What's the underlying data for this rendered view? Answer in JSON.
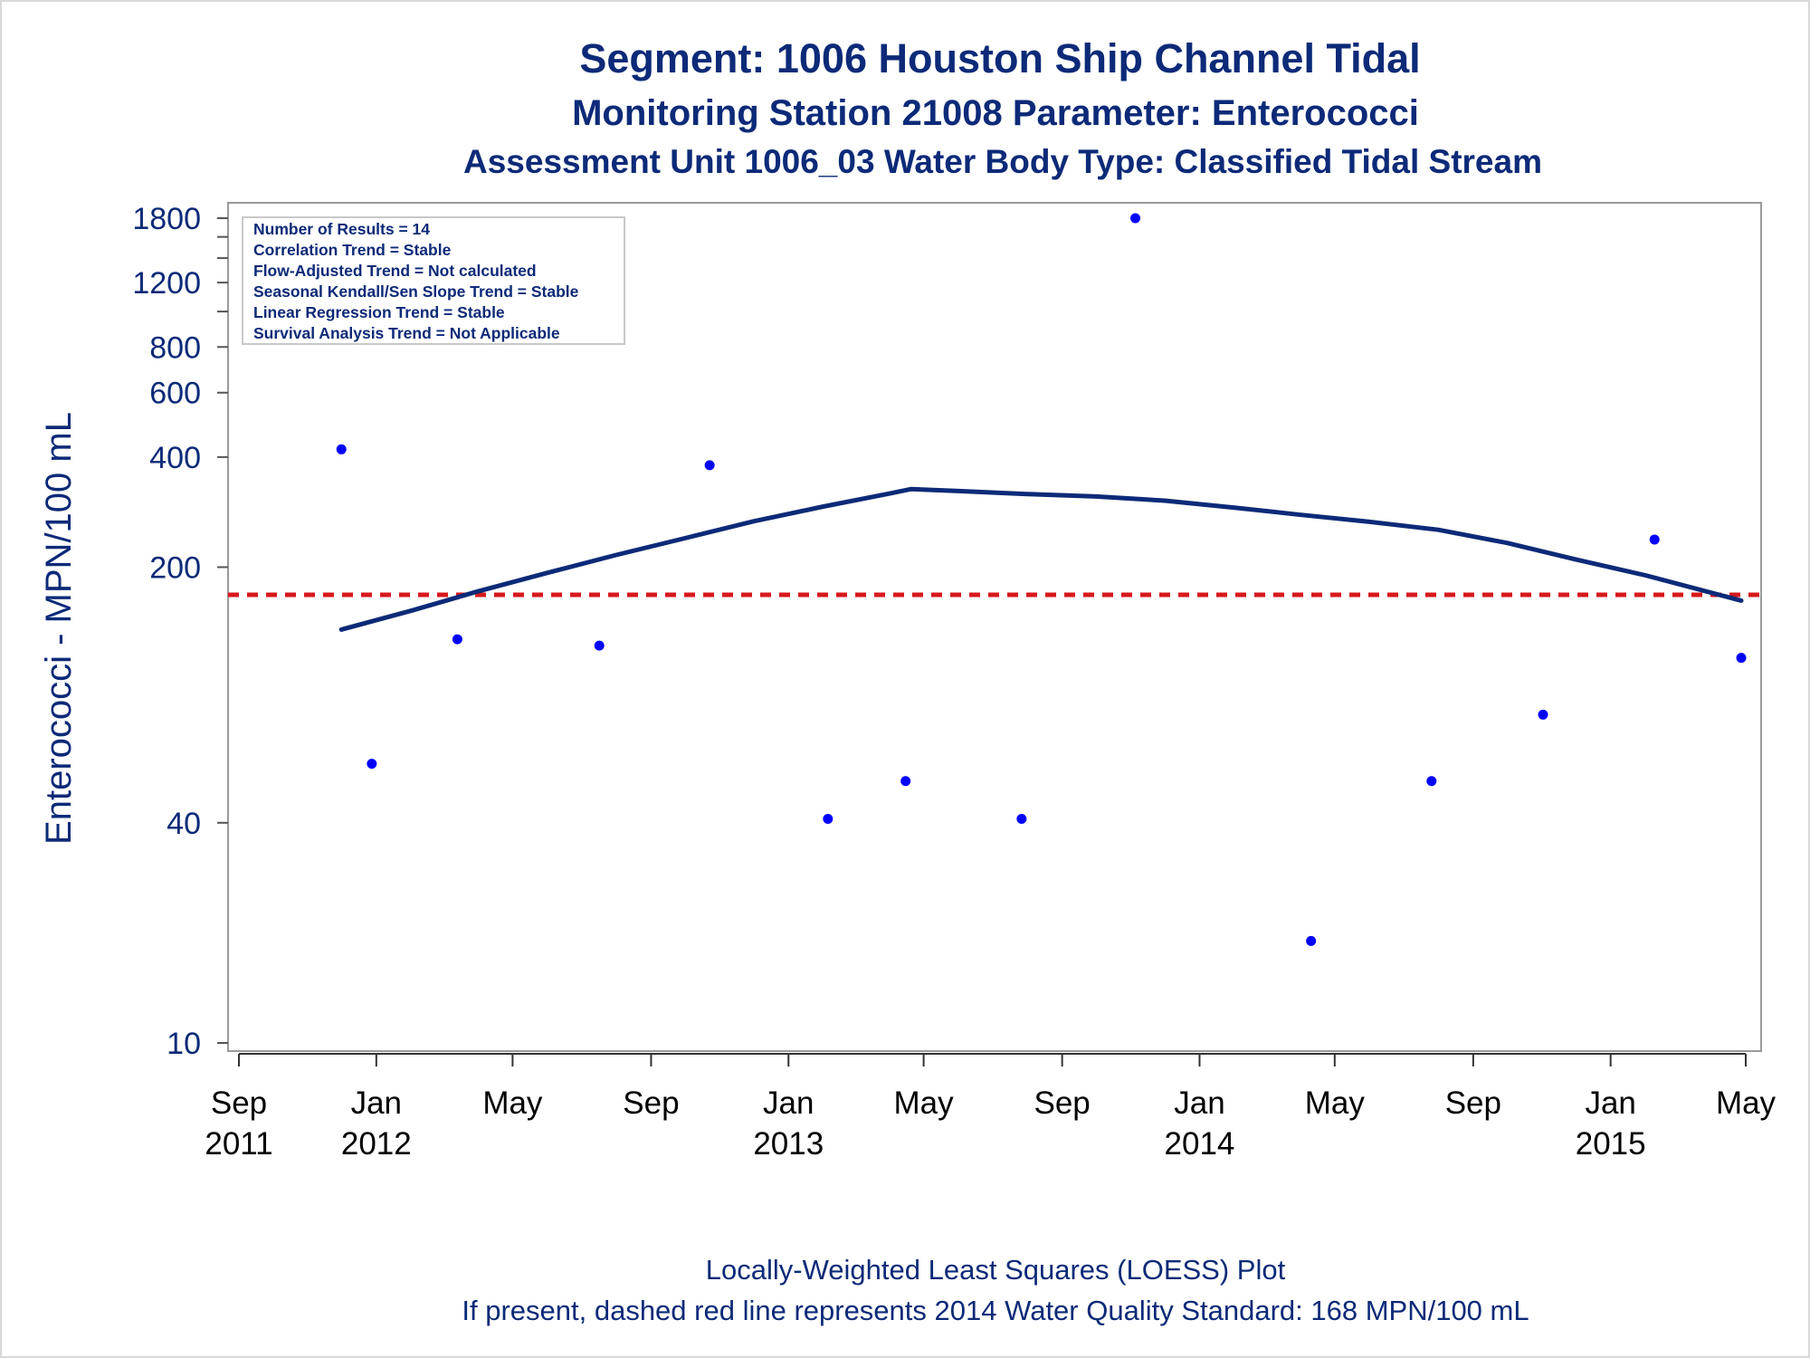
{
  "chart_data": {
    "type": "scatter",
    "title": "Segment: 1006  Houston Ship Channel Tidal",
    "subtitle": "Monitoring Station 21008 Parameter: Enterococci",
    "subtitle2": "Assessment Unit 1006_03   Water Body Type: Classified Tidal Stream",
    "ylabel": "Enterococci - MPN/100 mL",
    "yscale": "log",
    "ylim": [
      10,
      1800
    ],
    "xlim": [
      "2011-09-01",
      "2015-05-01"
    ],
    "y_ticks": [
      {
        "value": 10,
        "label": "10"
      },
      {
        "value": 40,
        "label": "40"
      },
      {
        "value": 200,
        "label": "200"
      },
      {
        "value": 400,
        "label": "400"
      },
      {
        "value": 600,
        "label": "600"
      },
      {
        "value": 800,
        "label": "800"
      },
      {
        "value": 1200,
        "label": "1200"
      },
      {
        "value": 1800,
        "label": "1800"
      }
    ],
    "y_minor_ticks": [
      1000,
      1400,
      1600
    ],
    "x_ticks": [
      {
        "date": "2011-09-01",
        "label1": "Sep",
        "label2": "2011"
      },
      {
        "date": "2012-01-01",
        "label1": "Jan",
        "label2": "2012"
      },
      {
        "date": "2012-05-01",
        "label1": "May",
        "label2": ""
      },
      {
        "date": "2012-09-01",
        "label1": "Sep",
        "label2": ""
      },
      {
        "date": "2013-01-01",
        "label1": "Jan",
        "label2": "2013"
      },
      {
        "date": "2013-05-01",
        "label1": "May",
        "label2": ""
      },
      {
        "date": "2013-09-01",
        "label1": "Sep",
        "label2": ""
      },
      {
        "date": "2014-01-01",
        "label1": "Jan",
        "label2": "2014"
      },
      {
        "date": "2014-05-01",
        "label1": "May",
        "label2": ""
      },
      {
        "date": "2014-09-01",
        "label1": "Sep",
        "label2": ""
      },
      {
        "date": "2015-01-01",
        "label1": "Jan",
        "label2": "2015"
      },
      {
        "date": "2015-05-01",
        "label1": "May",
        "label2": ""
      }
    ],
    "points": [
      {
        "x": "2011-12-01",
        "y": 420
      },
      {
        "x": "2011-12-28",
        "y": 58
      },
      {
        "x": "2012-03-13",
        "y": 127
      },
      {
        "x": "2012-07-17",
        "y": 122
      },
      {
        "x": "2012-10-23",
        "y": 380
      },
      {
        "x": "2013-02-05",
        "y": 41
      },
      {
        "x": "2013-04-15",
        "y": 52
      },
      {
        "x": "2013-07-27",
        "y": 41
      },
      {
        "x": "2013-11-05",
        "y": 1800
      },
      {
        "x": "2014-04-10",
        "y": 19
      },
      {
        "x": "2014-07-26",
        "y": 52
      },
      {
        "x": "2014-11-02",
        "y": 79
      },
      {
        "x": "2015-02-09",
        "y": 238
      },
      {
        "x": "2015-04-27",
        "y": 113
      }
    ],
    "loess_line": [
      {
        "x": "2011-12-01",
        "y": 135
      },
      {
        "x": "2012-02-01",
        "y": 152
      },
      {
        "x": "2012-04-01",
        "y": 172
      },
      {
        "x": "2012-06-01",
        "y": 193
      },
      {
        "x": "2012-08-01",
        "y": 216
      },
      {
        "x": "2012-10-01",
        "y": 240
      },
      {
        "x": "2012-12-01",
        "y": 267
      },
      {
        "x": "2013-02-01",
        "y": 293
      },
      {
        "x": "2013-04-01",
        "y": 318
      },
      {
        "x": "2013-04-20",
        "y": 327
      },
      {
        "x": "2013-06-01",
        "y": 323
      },
      {
        "x": "2013-08-01",
        "y": 317
      },
      {
        "x": "2013-10-01",
        "y": 312
      },
      {
        "x": "2013-12-01",
        "y": 304
      },
      {
        "x": "2014-02-01",
        "y": 291
      },
      {
        "x": "2014-04-01",
        "y": 278
      },
      {
        "x": "2014-06-01",
        "y": 266
      },
      {
        "x": "2014-08-01",
        "y": 253
      },
      {
        "x": "2014-10-01",
        "y": 233
      },
      {
        "x": "2014-12-01",
        "y": 210
      },
      {
        "x": "2015-02-01",
        "y": 190
      },
      {
        "x": "2015-04-27",
        "y": 162
      }
    ],
    "reference_line": {
      "y": 168,
      "color": "#d7191c",
      "style": "dashed"
    },
    "point_color": "#0000ff",
    "line_color": "#0c2a78",
    "grid": false,
    "legend_placement": "top-left",
    "stats_box": [
      "Number of Results = 14",
      "Correlation Trend = Stable",
      "Flow-Adjusted Trend = Not calculated",
      "Seasonal Kendall/Sen Slope Trend = Stable",
      "Linear Regression Trend = Stable",
      "Survival Analysis Trend = Not Applicable"
    ],
    "footnote1": "Locally-Weighted Least Squares (LOESS) Plot",
    "footnote2": "If present, dashed red line represents 2014 Water Quality Standard: 168 MPN/100 mL"
  }
}
